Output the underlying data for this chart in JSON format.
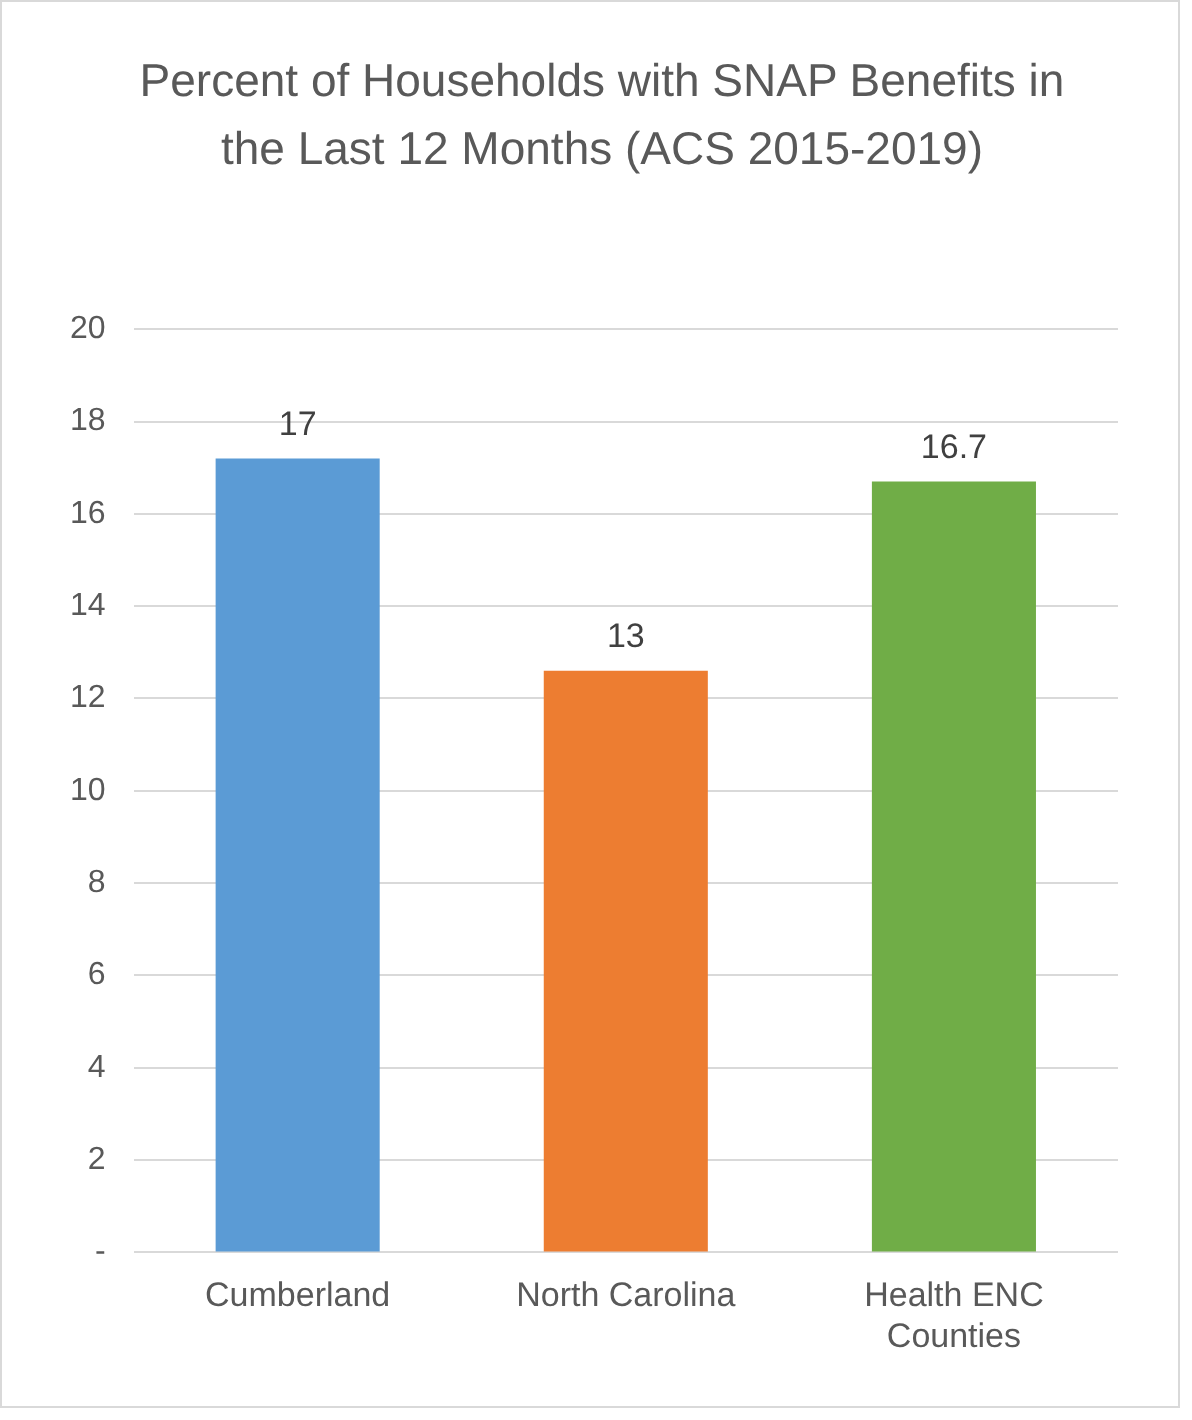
{
  "chart_data": {
    "type": "bar",
    "title": "Percent of Households with SNAP Benefits in the Last 12 Months (ACS 2015-2019)",
    "categories": [
      "Cumberland",
      "North Carolina",
      "Health ENC Counties"
    ],
    "values": [
      17.2,
      12.6,
      16.7
    ],
    "value_labels": [
      "17",
      "13",
      "16.7"
    ],
    "colors": [
      "#5b9bd5",
      "#ed7d31",
      "#70ad47"
    ],
    "ylim": [
      0,
      20
    ],
    "yticks": [
      {
        "value": 0,
        "label": "-"
      },
      2,
      4,
      6,
      8,
      10,
      12,
      14,
      16,
      18,
      20
    ],
    "grid": "y",
    "legend": false
  }
}
